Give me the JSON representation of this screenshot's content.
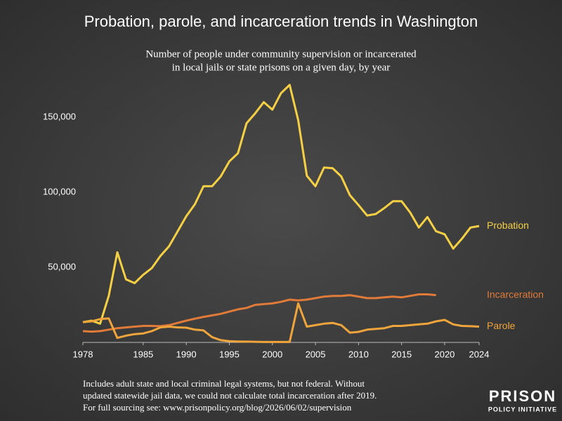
{
  "chart_data": {
    "type": "line",
    "title": "Probation, parole, and incarceration trends in Washington",
    "subtitle": [
      "Number of people under community supervision or incarcerated",
      "in local jails or state prisons on a given day, by year"
    ],
    "x": [
      1978,
      1979,
      1980,
      1981,
      1982,
      1983,
      1984,
      1985,
      1986,
      1987,
      1988,
      1989,
      1990,
      1991,
      1992,
      1993,
      1994,
      1995,
      1996,
      1997,
      1998,
      1999,
      2000,
      2001,
      2002,
      2003,
      2004,
      2005,
      2006,
      2007,
      2008,
      2009,
      2010,
      2011,
      2012,
      2013,
      2014,
      2015,
      2016,
      2017,
      2018,
      2019,
      2020,
      2021,
      2022,
      2023,
      2024
    ],
    "series": [
      {
        "name": "Probation",
        "color": "#f5d045",
        "values": [
          13500,
          14500,
          12500,
          31000,
          60000,
          42000,
          39500,
          45000,
          49500,
          57500,
          64000,
          74000,
          84000,
          92000,
          104000,
          104000,
          110500,
          120500,
          126000,
          146000,
          152500,
          160000,
          155000,
          166000,
          171500,
          148000,
          111000,
          104000,
          116500,
          116000,
          110500,
          98000,
          91500,
          84500,
          85500,
          89500,
          94000,
          94000,
          86500,
          76500,
          83500,
          74000,
          72000,
          62500,
          69000,
          76500,
          77500
        ]
      },
      {
        "name": "Incarceration",
        "color": "#e07b39",
        "values": [
          7500,
          7200,
          7500,
          8500,
          9500,
          10000,
          10500,
          11000,
          11000,
          10800,
          11500,
          13000,
          14500,
          15800,
          17000,
          18000,
          19000,
          20500,
          22000,
          23000,
          25000,
          25500,
          26000,
          27000,
          28500,
          28000,
          28500,
          29500,
          30500,
          31000,
          31000,
          31500,
          30500,
          29500,
          29500,
          30000,
          30500,
          30000,
          31000,
          32000,
          32000,
          31500,
          null,
          null,
          null,
          null,
          null
        ]
      },
      {
        "name": "Parole",
        "color": "#f0a53c",
        "values": [
          13500,
          14000,
          15500,
          16000,
          3000,
          4500,
          5500,
          6000,
          7500,
          10000,
          10500,
          10000,
          9800,
          8500,
          8000,
          3500,
          1500,
          800,
          600,
          500,
          400,
          300,
          300,
          300,
          300,
          26000,
          10500,
          11500,
          12500,
          13000,
          11500,
          6500,
          7000,
          8500,
          9000,
          9500,
          11000,
          11000,
          11500,
          12000,
          12500,
          14000,
          15000,
          12000,
          11000,
          10800,
          10500
        ]
      }
    ],
    "xlim": [
      1978,
      2024
    ],
    "xticks": [
      1978,
      1985,
      1990,
      1995,
      2000,
      2005,
      2010,
      2015,
      2020,
      2024
    ],
    "ylim": [
      0,
      175000
    ],
    "yticks": [
      {
        "value": 50000,
        "label": "50,000"
      },
      {
        "value": 100000,
        "label": "100,000"
      },
      {
        "value": 150000,
        "label": "150,000"
      }
    ],
    "footnote": [
      "Includes adult state and local criminal legal systems, but not federal. Without",
      "updated statewide jail data, we could not calculate total incarceration after 2019.",
      "For full sourcing see: www.prisonpolicy.org/blog/2026/06/02/supervision"
    ],
    "logo": [
      "PRISON",
      "POLICY INITIATIVE"
    ]
  }
}
